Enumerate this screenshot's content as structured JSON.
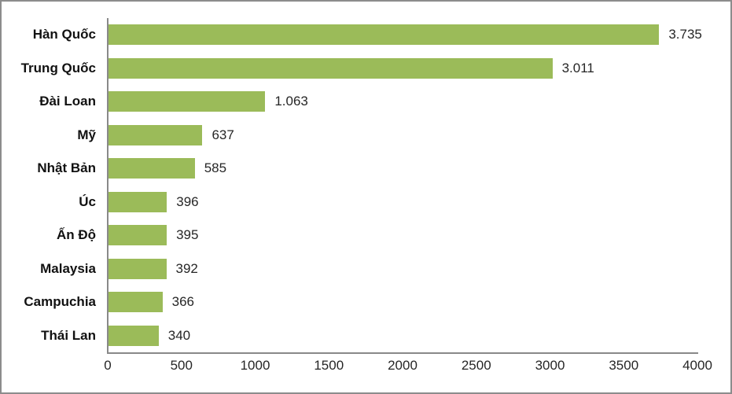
{
  "chart_data": {
    "type": "bar",
    "orientation": "horizontal",
    "title": "",
    "xlabel": "",
    "ylabel": "",
    "categories": [
      "Hàn Quốc",
      "Trung Quốc",
      "Đài Loan",
      "Mỹ",
      "Nhật Bản",
      "Úc",
      "Ấn Độ",
      "Malaysia",
      "Campuchia",
      "Thái Lan"
    ],
    "values": [
      3735,
      3011,
      1063,
      637,
      585,
      396,
      395,
      392,
      366,
      340
    ],
    "value_labels": [
      "3.735",
      "3.011",
      "1.063",
      "637",
      "585",
      "396",
      "395",
      "392",
      "366",
      "340"
    ],
    "xlim": [
      0,
      4000
    ],
    "xticks": [
      0,
      500,
      1000,
      1500,
      2000,
      2500,
      3000,
      3500,
      4000
    ],
    "xtick_labels": [
      "0",
      "500",
      "1000",
      "1500",
      "2000",
      "2500",
      "3000",
      "3500",
      "4000"
    ],
    "grid": false,
    "legend": false,
    "bar_color": "#9bbb59",
    "axis_color": "#898989",
    "frame_border_color": "#8c8c8c",
    "category_label_color": "#111111",
    "value_label_color": "#262626"
  }
}
